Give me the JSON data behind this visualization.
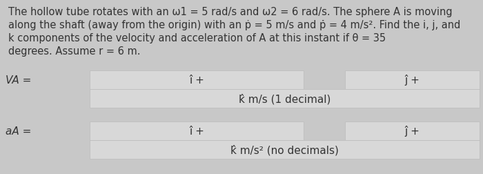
{
  "bg_color": "#c8c8c8",
  "box_color": "#d8d8d8",
  "text_color": "#333333",
  "para_text_line1": "The hollow tube rotates with an ω1 = 5 rad/s and ω2 = 6 rad/s. The sphere A is moving",
  "para_text_line2": "along the shaft (away from the origin) with an ṗ = 5 m/s and ṗ̇ = 4 m/s². Find the i, j, and",
  "para_text_line3": "k components of the velocity and acceleration of A at this instant if θ = 35",
  "para_text_line4": "degrees. Assume r = 6 m.",
  "va_label": "VA =",
  "aa_label": "aA =",
  "i_hat": "î +",
  "j_hat": "ĵ +",
  "k_hat_v": "k̂ m/s (1 decimal)",
  "k_hat_a": "k̂ m/s² (no decimals)",
  "font_size_para": 10.5,
  "font_size_labels": 11,
  "font_size_hat": 11
}
